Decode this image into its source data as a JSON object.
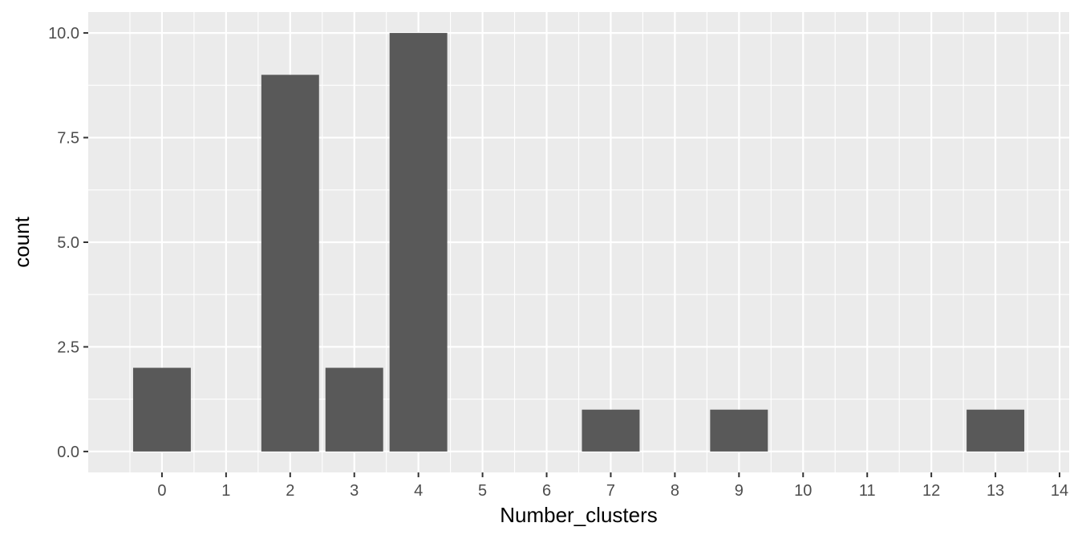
{
  "chart_data": {
    "type": "bar",
    "title": "",
    "xlabel": "Number_clusters",
    "ylabel": "count",
    "x": [
      0,
      2,
      3,
      4,
      7,
      9,
      13
    ],
    "values": [
      2,
      9,
      2,
      10,
      1,
      1,
      1
    ],
    "xlim": [
      -1.15,
      14.15
    ],
    "ylim": [
      -0.5,
      10.5
    ],
    "xticks": [
      0,
      1,
      2,
      3,
      4,
      5,
      6,
      7,
      8,
      9,
      10,
      11,
      12,
      13,
      14
    ],
    "yticks": [
      0,
      2.5,
      5,
      7.5,
      10
    ],
    "ytick_labels": [
      "0.0",
      "2.5",
      "5.0",
      "7.5",
      "10.0"
    ],
    "bar_width": 0.9,
    "grid": true,
    "legend": "none",
    "colors": {
      "bar": "#595959",
      "panel": "#EBEBEB",
      "grid": "#FFFFFF"
    }
  }
}
